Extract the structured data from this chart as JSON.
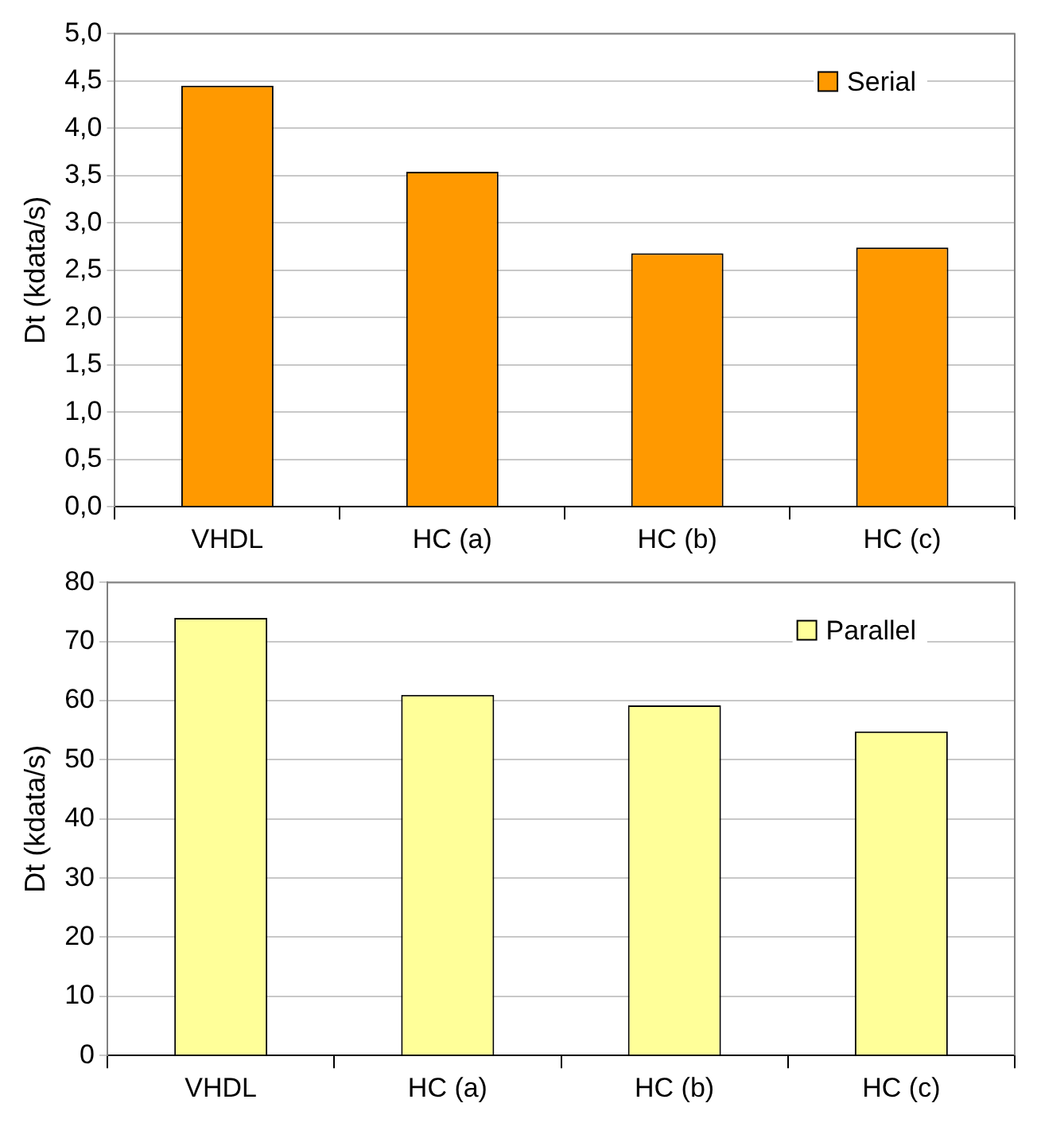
{
  "chart_data": [
    {
      "type": "bar",
      "categories": [
        "VHDL",
        "HC (a)",
        "HC (b)",
        "HC (c)"
      ],
      "ylabel": "Dt (kdata/s)",
      "series": [
        {
          "name": "Serial",
          "color": "#ff9900",
          "values": [
            4.45,
            3.54,
            2.68,
            2.74
          ]
        }
      ],
      "ylim": [
        0,
        5
      ],
      "yticks": [
        {
          "value": 0,
          "label": "0,0"
        },
        {
          "value": 0.5,
          "label": "0,5"
        },
        {
          "value": 1,
          "label": "1,0"
        },
        {
          "value": 1.5,
          "label": "1,5"
        },
        {
          "value": 2,
          "label": "2,0"
        },
        {
          "value": 2.5,
          "label": "2,5"
        },
        {
          "value": 3,
          "label": "3,0"
        },
        {
          "value": 3.5,
          "label": "3,5"
        },
        {
          "value": 4,
          "label": "4,0"
        },
        {
          "value": 4.5,
          "label": "4,5"
        },
        {
          "value": 5,
          "label": "5,0"
        }
      ],
      "grid": "y",
      "legend": "top right"
    },
    {
      "type": "bar",
      "categories": [
        "VHDL",
        "HC (a)",
        "HC (b)",
        "HC (c)"
      ],
      "ylabel": "Dt (kdata/s)",
      "series": [
        {
          "name": "Parallel",
          "color": "#ffff99",
          "values": [
            74,
            61,
            59.2,
            54.8
          ]
        }
      ],
      "ylim": [
        0,
        80
      ],
      "yticks": [
        0,
        10,
        20,
        30,
        40,
        50,
        60,
        70,
        80
      ],
      "grid": "y",
      "legend": "top right"
    }
  ]
}
